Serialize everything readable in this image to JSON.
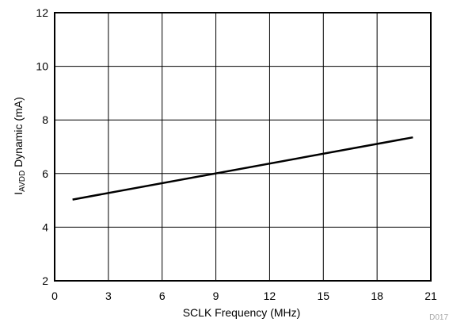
{
  "chart_data": {
    "type": "line",
    "xlabel": "SCLK Frequency (MHz)",
    "ylabel_main": "I",
    "ylabel_subscript": "AVDD",
    "ylabel_rest": " Dynamic (mA)",
    "xlim": [
      0,
      21
    ],
    "ylim": [
      2,
      12
    ],
    "x_ticks": [
      "0",
      "3",
      "6",
      "9",
      "12",
      "15",
      "18",
      "21"
    ],
    "y_ticks": [
      "2",
      "4",
      "6",
      "8",
      "10",
      "12"
    ],
    "grid": true,
    "series": [
      {
        "x": [
          1,
          20
        ],
        "y": [
          5.03,
          7.35
        ],
        "color": "#000000"
      }
    ]
  },
  "figure_id": "D017"
}
